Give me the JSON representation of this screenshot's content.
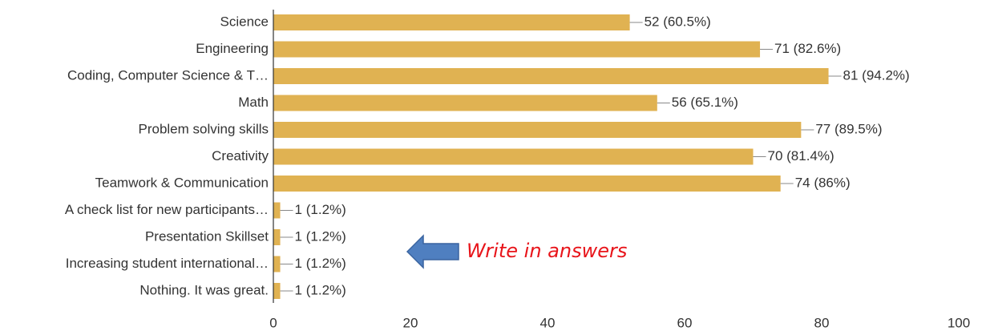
{
  "chart_data": {
    "type": "hbar",
    "categories": [
      "Science",
      "Engineering",
      "Coding, Computer Science & T…",
      "Math",
      "Problem solving skills",
      "Creativity",
      "Teamwork & Communication",
      "A check list for new participants…",
      "Presentation Skillset",
      "Increasing student international…",
      "Nothing. It was great."
    ],
    "values": [
      52,
      71,
      81,
      56,
      77,
      70,
      74,
      1,
      1,
      1,
      1
    ],
    "value_labels": [
      "52 (60.5%)",
      "71 (82.6%)",
      "81 (94.2%)",
      "56 (65.1%)",
      "77 (89.5%)",
      "70 (81.4%)",
      "74 (86%)",
      "1 (1.2%)",
      "1 (1.2%)",
      "1 (1.2%)",
      "1 (1.2%)"
    ],
    "color": "#e0b252",
    "xlim": [
      0,
      100
    ],
    "xticks": [
      0,
      20,
      40,
      60,
      80,
      100
    ],
    "grid": false,
    "annotation": "Write in answers"
  }
}
